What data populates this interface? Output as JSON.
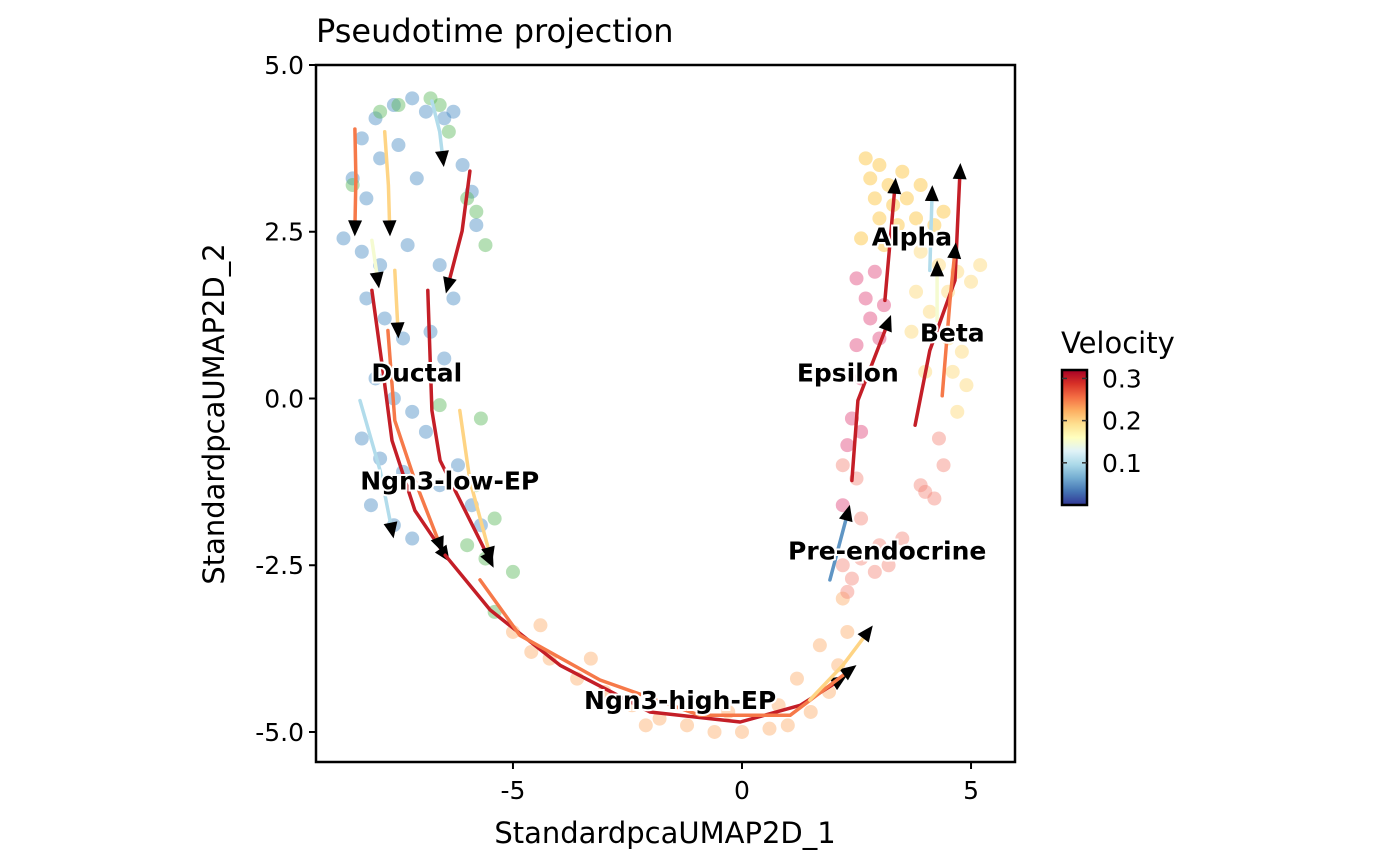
{
  "chart_data": {
    "type": "scatter",
    "title": "Pseudotime projection",
    "xlabel": "StandardpcaUMAP2D_1",
    "ylabel": "StandardpcaUMAP2D_2",
    "xlim": [
      -9.3,
      5.96
    ],
    "ylim": [
      -5.45,
      5.0
    ],
    "xticks": [
      {
        "v": -5,
        "label": "-5"
      },
      {
        "v": 0,
        "label": "0"
      },
      {
        "v": 5,
        "label": "5"
      }
    ],
    "yticks": [
      {
        "v": -5,
        "label": "-5.0"
      },
      {
        "v": -2.5,
        "label": "-2.5"
      },
      {
        "v": 0,
        "label": "0.0"
      },
      {
        "v": 2.5,
        "label": "2.5"
      },
      {
        "v": 5,
        "label": "5.0"
      }
    ],
    "grid": false,
    "clusters": [
      {
        "name": "Ductal",
        "color": "#4a8cc4",
        "label_pos": [
          -7.1,
          0.39
        ],
        "points": [
          [
            -8.3,
            3.9
          ],
          [
            -8.0,
            4.2
          ],
          [
            -7.6,
            4.4
          ],
          [
            -7.2,
            4.5
          ],
          [
            -6.9,
            4.3
          ],
          [
            -6.5,
            4.2
          ],
          [
            -6.3,
            4.3
          ],
          [
            -8.5,
            3.3
          ],
          [
            -8.2,
            3.0
          ],
          [
            -7.9,
            3.6
          ],
          [
            -7.5,
            3.8
          ],
          [
            -7.1,
            3.3
          ],
          [
            -6.1,
            3.5
          ],
          [
            -5.9,
            3.1
          ],
          [
            -5.8,
            2.6
          ],
          [
            -8.7,
            2.4
          ],
          [
            -8.3,
            2.2
          ],
          [
            -7.9,
            2.0
          ],
          [
            -7.3,
            2.3
          ],
          [
            -6.6,
            2.0
          ],
          [
            -6.3,
            1.5
          ],
          [
            -8.2,
            1.5
          ],
          [
            -7.8,
            1.2
          ],
          [
            -7.4,
            0.9
          ],
          [
            -6.8,
            1.0
          ],
          [
            -6.5,
            0.6
          ],
          [
            -8.0,
            0.3
          ],
          [
            -7.6,
            0.0
          ],
          [
            -7.2,
            -0.2
          ],
          [
            -6.9,
            -0.5
          ],
          [
            -8.3,
            -0.6
          ],
          [
            -7.9,
            -0.9
          ],
          [
            -7.4,
            -1.1
          ],
          [
            -6.6,
            -1.3
          ],
          [
            -8.1,
            -1.6
          ],
          [
            -7.6,
            -1.9
          ],
          [
            -7.2,
            -2.1
          ],
          [
            -5.9,
            -1.6
          ],
          [
            -6.2,
            -1.0
          ],
          [
            -5.7,
            -1.9
          ]
        ]
      },
      {
        "name": "Ngn3-low-EP",
        "color": "#5cb85c",
        "label_pos": [
          -6.38,
          -1.23
        ],
        "points": [
          [
            -7.9,
            4.3
          ],
          [
            -7.5,
            4.4
          ],
          [
            -6.8,
            4.5
          ],
          [
            -6.6,
            4.4
          ],
          [
            -6.4,
            4.0
          ],
          [
            -8.5,
            3.2
          ],
          [
            -5.6,
            2.3
          ],
          [
            -5.8,
            2.8
          ],
          [
            -6.0,
            3.0
          ],
          [
            -5.7,
            -0.3
          ],
          [
            -5.4,
            -1.8
          ],
          [
            -5.6,
            -2.4
          ],
          [
            -5.0,
            -2.6
          ],
          [
            -5.4,
            -3.2
          ],
          [
            -6.0,
            -2.2
          ],
          [
            -6.6,
            -0.1
          ],
          [
            -5.8,
            -1.3
          ]
        ]
      },
      {
        "name": "Ngn3-high-EP",
        "color": "#fdae6b",
        "label_pos": [
          -1.35,
          -4.52
        ],
        "points": [
          [
            -5.0,
            -3.5
          ],
          [
            -4.6,
            -3.8
          ],
          [
            -4.2,
            -3.9
          ],
          [
            -3.6,
            -4.2
          ],
          [
            -3.0,
            -4.4
          ],
          [
            -2.4,
            -4.6
          ],
          [
            -1.8,
            -4.8
          ],
          [
            -1.2,
            -4.9
          ],
          [
            -0.6,
            -5.0
          ],
          [
            0.0,
            -5.0
          ],
          [
            0.6,
            -4.95
          ],
          [
            1.0,
            -4.9
          ],
          [
            1.5,
            -4.7
          ],
          [
            1.9,
            -4.4
          ],
          [
            2.1,
            -4.0
          ],
          [
            1.7,
            -3.7
          ],
          [
            2.3,
            -3.5
          ],
          [
            2.2,
            -3.0
          ],
          [
            -2.1,
            -4.9
          ],
          [
            -0.3,
            -4.7
          ],
          [
            0.8,
            -4.6
          ],
          [
            1.2,
            -4.2
          ],
          [
            -4.4,
            -3.4
          ],
          [
            -3.3,
            -3.9
          ]
        ]
      },
      {
        "name": "Pre-endocrine",
        "color": "#f4877a",
        "label_pos": [
          3.17,
          -2.28
        ],
        "points": [
          [
            2.2,
            -2.5
          ],
          [
            2.4,
            -2.7
          ],
          [
            2.6,
            -2.4
          ],
          [
            2.9,
            -2.6
          ],
          [
            3.2,
            -2.5
          ],
          [
            3.0,
            -2.2
          ],
          [
            2.6,
            -1.8
          ],
          [
            2.3,
            -2.9
          ],
          [
            3.5,
            -2.1
          ],
          [
            3.9,
            -1.3
          ],
          [
            4.2,
            -1.5
          ],
          [
            4.0,
            -1.4
          ],
          [
            2.5,
            -1.2
          ],
          [
            2.2,
            -1.0
          ],
          [
            4.3,
            -0.6
          ],
          [
            4.4,
            -1.0
          ]
        ]
      },
      {
        "name": "Epsilon",
        "color": "#e0457b",
        "label_pos": [
          2.31,
          0.39
        ],
        "points": [
          [
            2.5,
            1.8
          ],
          [
            2.9,
            1.9
          ],
          [
            3.1,
            1.4
          ],
          [
            2.8,
            1.2
          ],
          [
            2.5,
            0.8
          ],
          [
            2.6,
            0.3
          ],
          [
            2.4,
            -0.3
          ],
          [
            2.3,
            -0.7
          ],
          [
            2.7,
            1.5
          ],
          [
            3.0,
            0.9
          ],
          [
            2.6,
            -0.5
          ],
          [
            2.2,
            -1.6
          ]
        ]
      },
      {
        "name": "Alpha",
        "color": "#fcc232",
        "label_pos": [
          3.71,
          2.43
        ],
        "points": [
          [
            2.7,
            3.6
          ],
          [
            3.0,
            3.5
          ],
          [
            2.8,
            3.3
          ],
          [
            3.2,
            3.2
          ],
          [
            2.9,
            3.0
          ],
          [
            3.5,
            3.4
          ],
          [
            3.6,
            3.0
          ],
          [
            3.0,
            2.7
          ],
          [
            3.4,
            2.6
          ],
          [
            3.8,
            2.7
          ],
          [
            4.2,
            2.6
          ],
          [
            2.6,
            2.4
          ],
          [
            3.1,
            2.3
          ],
          [
            4.4,
            2.8
          ],
          [
            3.9,
            3.2
          ],
          [
            3.3,
            2.9
          ]
        ]
      },
      {
        "name": "Beta",
        "color": "#fdd873",
        "label_pos": [
          4.59,
          0.99
        ],
        "points": [
          [
            3.9,
            2.2
          ],
          [
            4.3,
            2.0
          ],
          [
            4.7,
            1.9
          ],
          [
            5.2,
            2.0
          ],
          [
            5.0,
            1.75
          ],
          [
            3.8,
            1.6
          ],
          [
            4.1,
            1.3
          ],
          [
            4.5,
            1.6
          ],
          [
            4.8,
            0.7
          ],
          [
            4.5,
            0.9
          ],
          [
            3.7,
            1.0
          ],
          [
            4.9,
            0.2
          ],
          [
            4.7,
            -0.2
          ],
          [
            4.6,
            0.4
          ],
          [
            4.0,
            0.4
          ]
        ]
      }
    ],
    "streamlines": [
      {
        "velocity": 0.25,
        "path": [
          [
            -8.45,
            4.04
          ],
          [
            -8.43,
            3.3
          ],
          [
            -8.45,
            2.55
          ]
        ]
      },
      {
        "velocity": 0.2,
        "path": [
          [
            -7.8,
            4.0
          ],
          [
            -7.72,
            3.2
          ],
          [
            -7.69,
            2.55
          ]
        ]
      },
      {
        "velocity": 0.1,
        "path": [
          [
            -6.77,
            4.46
          ],
          [
            -6.6,
            4.0
          ],
          [
            -6.53,
            3.59
          ]
        ]
      },
      {
        "velocity": 0.3,
        "path": [
          [
            -5.94,
            3.41
          ],
          [
            -6.11,
            2.51
          ],
          [
            -6.42,
            1.69
          ]
        ]
      },
      {
        "velocity": 0.15,
        "path": [
          [
            -8.08,
            2.37
          ],
          [
            -7.95,
            1.77
          ]
        ]
      },
      {
        "velocity": 0.2,
        "path": [
          [
            -7.58,
            1.92
          ],
          [
            -7.51,
            1.02
          ]
        ]
      },
      {
        "velocity": 0.3,
        "path": [
          [
            -8.08,
            1.62
          ],
          [
            -7.84,
            0.42
          ],
          [
            -7.64,
            -0.63
          ],
          [
            -7.14,
            -1.68
          ],
          [
            -6.48,
            -2.35
          ]
        ]
      },
      {
        "velocity": 0.25,
        "path": [
          [
            -7.73,
            1.02
          ],
          [
            -7.58,
            -0.33
          ],
          [
            -7.14,
            -1.23
          ],
          [
            -6.59,
            -2.2
          ]
        ]
      },
      {
        "velocity": 0.3,
        "path": [
          [
            -6.86,
            1.62
          ],
          [
            -6.77,
            -0.18
          ],
          [
            -6.59,
            -0.93
          ],
          [
            -5.5,
            -2.43
          ]
        ]
      },
      {
        "velocity": 0.1,
        "path": [
          [
            -8.34,
            -0.03
          ],
          [
            -7.9,
            -1.08
          ],
          [
            -7.64,
            -1.98
          ]
        ]
      },
      {
        "velocity": 0.3,
        "path": [
          [
            -6.48,
            -2.35
          ],
          [
            -5.5,
            -3.17
          ],
          [
            -3.97,
            -4.0
          ],
          [
            -2.01,
            -4.7
          ],
          [
            -0.04,
            -4.85
          ],
          [
            1.27,
            -4.6
          ],
          [
            2.14,
            -4.22
          ]
        ]
      },
      {
        "velocity": 0.25,
        "path": [
          [
            -5.72,
            -2.72
          ],
          [
            -4.85,
            -3.55
          ],
          [
            -3.1,
            -4.22
          ],
          [
            -0.92,
            -4.75
          ],
          [
            1.05,
            -4.75
          ],
          [
            2.36,
            -4.07
          ]
        ]
      },
      {
        "velocity": 0.2,
        "path": [
          [
            1.48,
            -4.52
          ],
          [
            2.2,
            -4.0
          ],
          [
            2.75,
            -3.5
          ]
        ]
      },
      {
        "velocity": 0.05,
        "path": [
          [
            1.92,
            -2.72
          ],
          [
            2.31,
            -1.71
          ]
        ]
      },
      {
        "velocity": 0.3,
        "path": [
          [
            2.4,
            -1.23
          ],
          [
            2.53,
            -0.03
          ],
          [
            3.19,
            1.14
          ]
        ]
      },
      {
        "velocity": 0.3,
        "path": [
          [
            3.12,
            1.47
          ],
          [
            3.34,
            3.19
          ]
        ]
      },
      {
        "velocity": 0.1,
        "path": [
          [
            4.1,
            1.92
          ],
          [
            4.15,
            3.08
          ]
        ]
      },
      {
        "velocity": 0.15,
        "path": [
          [
            4.26,
            1.17
          ],
          [
            4.26,
            1.95
          ]
        ]
      },
      {
        "velocity": 0.3,
        "path": [
          [
            3.78,
            -0.4
          ],
          [
            4.1,
            0.72
          ],
          [
            4.65,
            1.77
          ],
          [
            4.76,
            3.41
          ]
        ]
      },
      {
        "velocity": 0.25,
        "path": [
          [
            4.37,
            0.04
          ],
          [
            4.54,
            1.47
          ],
          [
            4.65,
            2.22
          ]
        ]
      },
      {
        "velocity": 0.2,
        "path": [
          [
            -6.16,
            -0.18
          ],
          [
            -5.94,
            -1.23
          ],
          [
            -5.5,
            -2.35
          ]
        ]
      }
    ],
    "legend": {
      "title": "Velocity",
      "placement": "right",
      "range": [
        0.0,
        0.32
      ],
      "ticks": [
        {
          "v": 0.1,
          "label": "0.1"
        },
        {
          "v": 0.2,
          "label": "0.2"
        },
        {
          "v": 0.3,
          "label": "0.3"
        }
      ],
      "colormap": [
        "#313695",
        "#4575b4",
        "#74add1",
        "#abd9e9",
        "#e0f3f8",
        "#ffffbf",
        "#fee090",
        "#fdae61",
        "#f46d43",
        "#d73027",
        "#a50026"
      ]
    }
  }
}
